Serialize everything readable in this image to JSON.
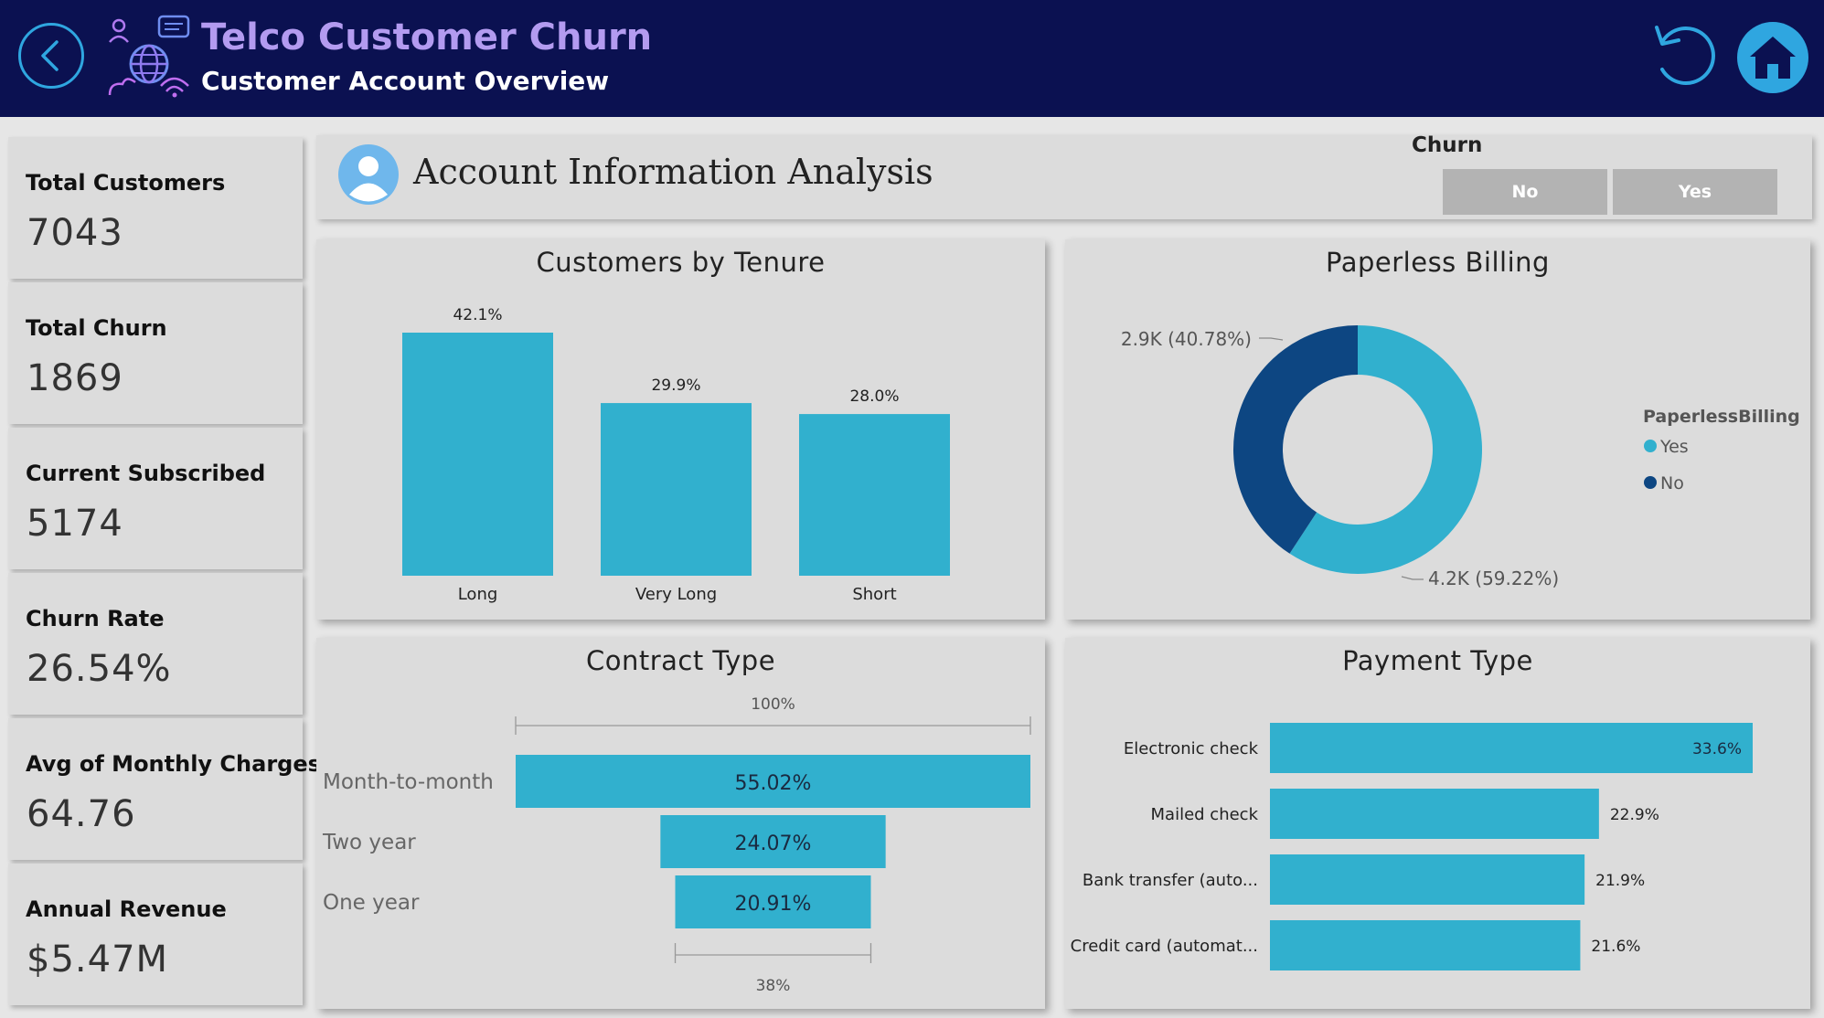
{
  "header": {
    "title": "Telco Customer Churn",
    "subtitle": "Customer Account Overview",
    "accent_color": "#b39bf0",
    "background_color": "#0b1151",
    "icons": [
      "back-arrow-icon",
      "telecom-network-logo-icon",
      "reset-icon",
      "home-icon"
    ]
  },
  "kpis": [
    {
      "label": "Total Customers",
      "value": "7043"
    },
    {
      "label": "Total Churn",
      "value": "1869"
    },
    {
      "label": "Current Subscribed",
      "value": "5174"
    },
    {
      "label": "Churn Rate",
      "value": "26.54%"
    },
    {
      "label": "Avg of Monthly Charges",
      "value": "64.76"
    },
    {
      "label": "Annual Revenue",
      "value": "$5.47M"
    }
  ],
  "banner": {
    "title": "Account Information Analysis",
    "icon": "user-avatar-icon",
    "churn_filter": {
      "label": "Churn",
      "options": [
        "No",
        "Yes"
      ]
    }
  },
  "chart_data": [
    {
      "type": "bar",
      "title": "Customers by Tenure",
      "categories": [
        "Long",
        "Very Long",
        "Short"
      ],
      "values": [
        42.1,
        29.9,
        28.0
      ],
      "labels": [
        "42.1%",
        "29.9%",
        "28.0%"
      ],
      "ylim": [
        0,
        42.1
      ],
      "color": "#31b0ce"
    },
    {
      "type": "pie",
      "title": "Paperless Billing",
      "legend_title": "PaperlessBilling",
      "legend_position": "right",
      "slices": [
        {
          "name": "Yes",
          "value": 59.22,
          "label": "4.2K (59.22%)",
          "color": "#31b0ce"
        },
        {
          "name": "No",
          "value": 40.78,
          "label": "2.9K (40.78%)",
          "color": "#0d4682"
        }
      ]
    },
    {
      "type": "bar",
      "title": "Contract Type",
      "categories": [
        "Month-to-month",
        "Two year",
        "One year"
      ],
      "values": [
        55.02,
        24.07,
        20.91
      ],
      "labels": [
        "55.02%",
        "24.07%",
        "20.91%"
      ],
      "top_scale_label": "100%",
      "bottom_scale_label": "38%",
      "color": "#31b0ce"
    },
    {
      "type": "bar",
      "title": "Payment Type",
      "categories": [
        "Electronic check",
        "Mailed check",
        "Bank transfer (auto...",
        "Credit card (automat..."
      ],
      "values": [
        33.6,
        22.9,
        21.9,
        21.6
      ],
      "labels": [
        "33.6%",
        "22.9%",
        "21.9%",
        "21.6%"
      ],
      "xlim": [
        0,
        33.6
      ],
      "color": "#31b0ce"
    }
  ]
}
